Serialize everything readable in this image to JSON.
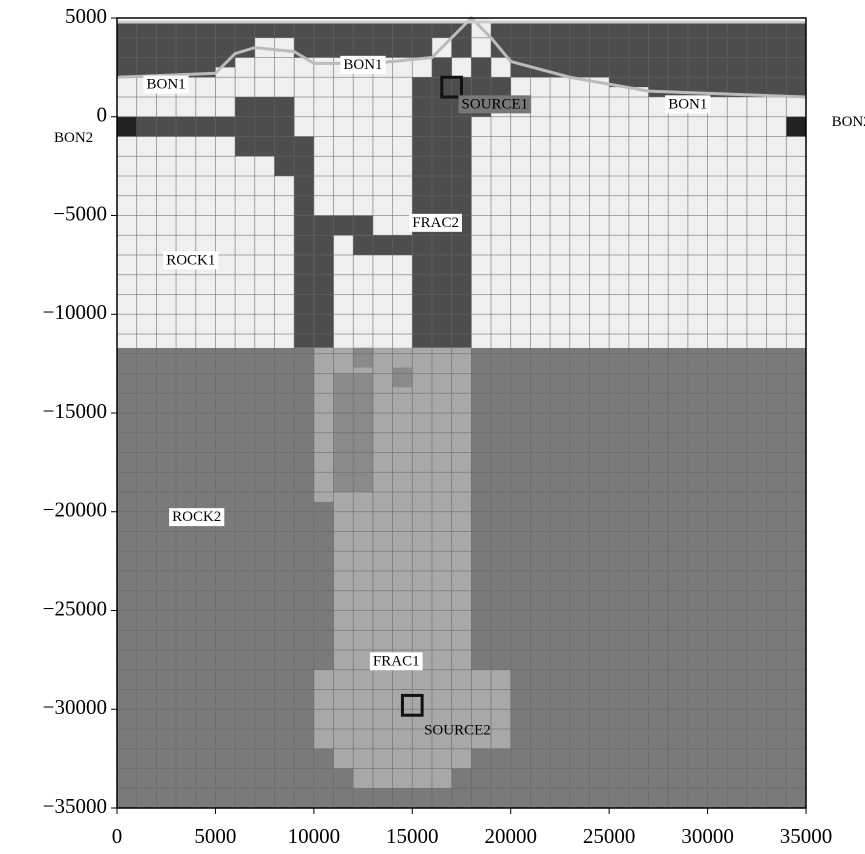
{
  "chart_data": {
    "type": "mesh",
    "labels": [
      "BON1",
      "BON1",
      "BON1",
      "BON2",
      "BON2",
      "SOURCE1",
      "FRAC2",
      "ROCK1",
      "ROCK2",
      "FRAC1",
      "SOURCE2"
    ],
    "xlim": [
      0,
      35000
    ],
    "ylim": [
      -35000,
      5000
    ],
    "xticks": [
      0,
      5000,
      10000,
      15000,
      20000,
      25000,
      30000,
      35000
    ],
    "yticks": [
      {
        "value": 5000,
        "label": "5000"
      },
      {
        "value": 0,
        "label": "0"
      },
      {
        "value": -5000,
        "label": "−5000"
      },
      {
        "value": -10000,
        "label": "−10000"
      },
      {
        "value": -15000,
        "label": "−15000"
      },
      {
        "value": -20000,
        "label": "−20000"
      },
      {
        "value": -25000,
        "label": "−25000"
      },
      {
        "value": -30000,
        "label": "−30000"
      },
      {
        "value": -35000,
        "label": "−35000"
      }
    ],
    "grid": true
  }
}
